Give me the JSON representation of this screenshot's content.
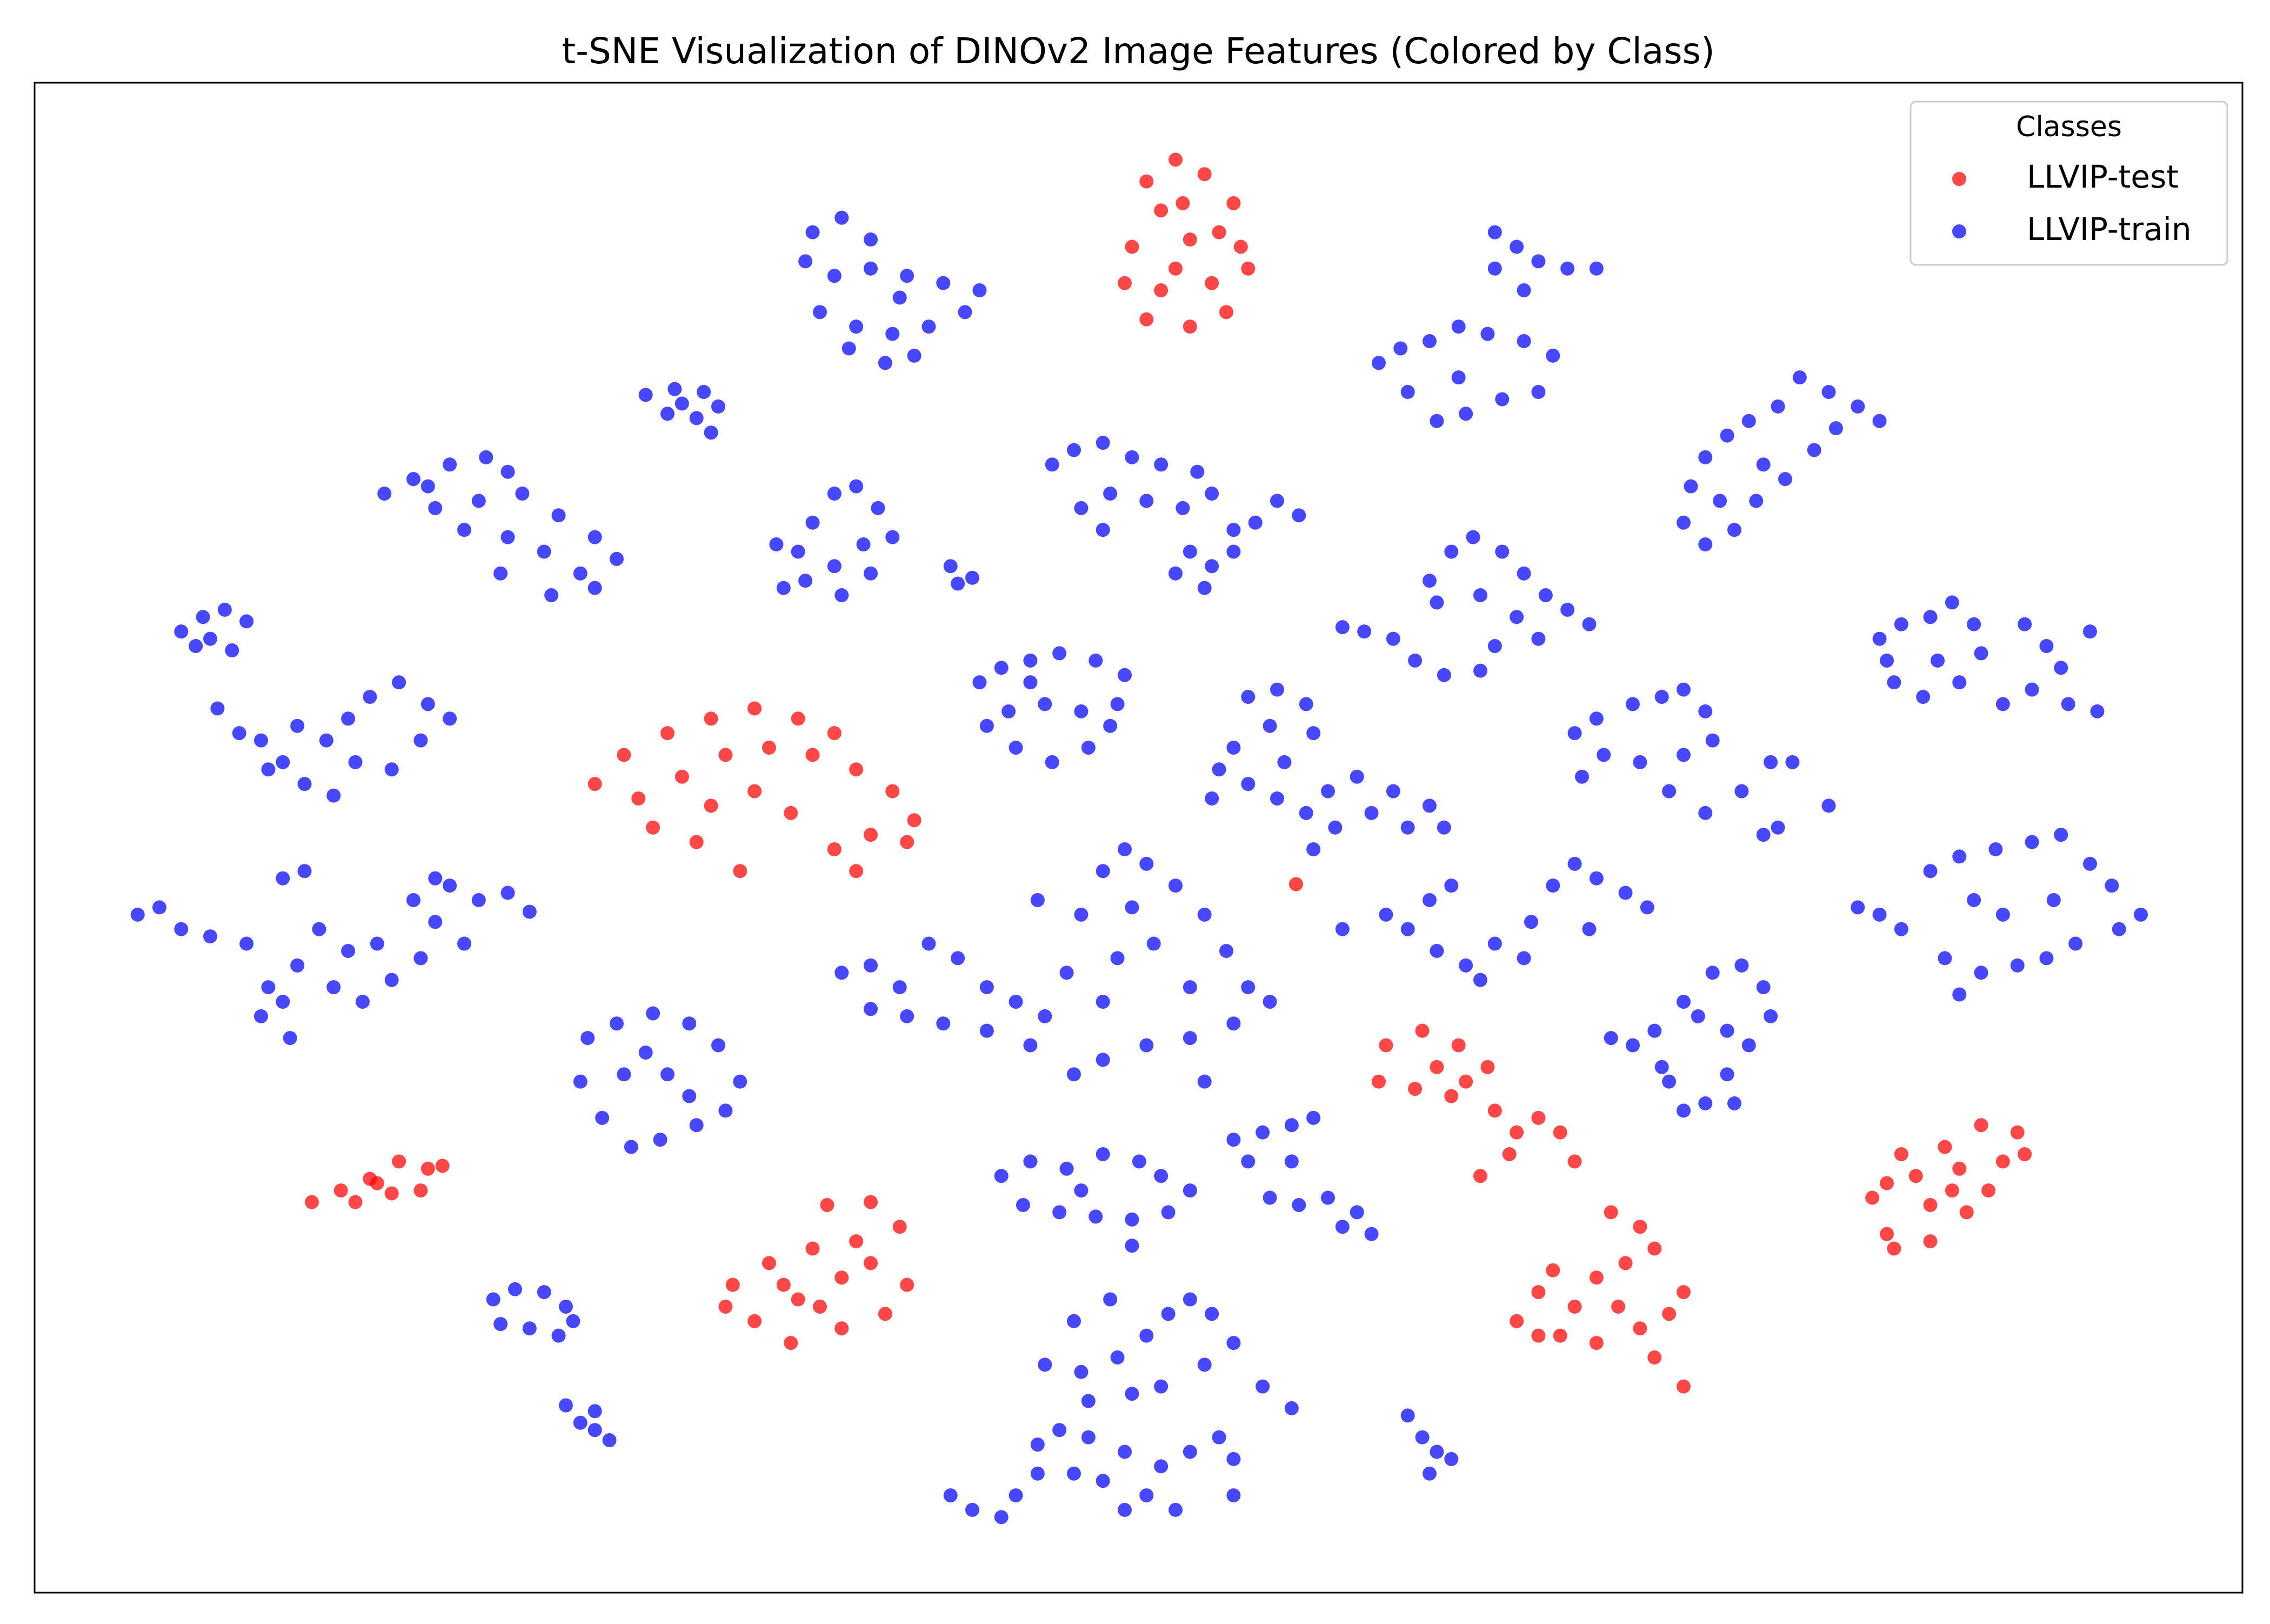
{
  "chart_data": {
    "type": "scatter",
    "title": "t-SNE Visualization of DINOv2 Image Features (Colored by Class)",
    "legend_title": "Classes",
    "legend": "upper right",
    "xlim": [
      24,
      1545
    ],
    "ylim": [
      3,
      1043
    ],
    "series": [
      {
        "name": "LLVIP-test",
        "color": "#ff0000",
        "x": [
          810,
          790,
          830,
          850,
          800,
          780,
          820,
          855,
          775,
          800,
          835,
          860,
          790,
          820,
          845,
          815,
          840,
          810,
          410,
          430,
          460,
          490,
          520,
          550,
          575,
          440,
          470,
          500,
          530,
          560,
          590,
          615,
          630,
          450,
          480,
          510,
          545,
          575,
          600,
          625,
          590,
          520,
          490,
          215,
          235,
          255,
          275,
          295,
          305,
          245,
          270,
          290,
          260,
          570,
          600,
          620,
          590,
          560,
          530,
          505,
          500,
          520,
          545,
          580,
          610,
          625,
          550,
          580,
          600,
          540,
          565,
          955,
          980,
          1005,
          1025,
          950,
          975,
          1000,
          1030,
          1045,
          1060,
          1075,
          1040,
          1020,
          1085,
          990,
          1010,
          1110,
          1130,
          1140,
          1120,
          1100,
          1070,
          1060,
          1045,
          1075,
          1100,
          1130,
          1160,
          1150,
          1085,
          1115,
          1160,
          1140,
          1060,
          1365,
          1390,
          1340,
          1310,
          1300,
          1290,
          1320,
          1350,
          1380,
          1395,
          1330,
          1355,
          1300,
          1330,
          1305,
          1370,
          1345,
          893
        ],
        "values": [
          990,
          975,
          980,
          960,
          955,
          930,
          935,
          930,
          905,
          900,
          905,
          915,
          880,
          875,
          885,
          960,
          940,
          915,
          560,
          580,
          595,
          605,
          612,
          605,
          595,
          550,
          565,
          580,
          585,
          580,
          570,
          555,
          535,
          530,
          520,
          500,
          540,
          515,
          525,
          520,
          500,
          555,
          545,
          272,
          280,
          288,
          300,
          295,
          297,
          272,
          278,
          280,
          285,
          270,
          272,
          255,
          245,
          240,
          230,
          215,
          200,
          190,
          175,
          185,
          195,
          215,
          205,
          220,
          230,
          215,
          200,
          380,
          390,
          380,
          365,
          355,
          350,
          345,
          335,
          320,
          330,
          320,
          305,
          290,
          300,
          365,
          355,
          265,
          255,
          240,
          230,
          220,
          225,
          210,
          190,
          180,
          175,
          185,
          210,
          195,
          200,
          200,
          145,
          165,
          180,
          325,
          320,
          310,
          305,
          285,
          275,
          290,
          295,
          300,
          305,
          270,
          265,
          250,
          245,
          240,
          280,
          280,
          491
        ]
      },
      {
        "name": "LLVIP-train",
        "color": "#0000ff",
        "x": [
          560,
          580,
          600,
          555,
          575,
          600,
          625,
          650,
          675,
          565,
          590,
          615,
          640,
          665,
          585,
          610,
          630,
          620,
          445,
          465,
          485,
          495,
          460,
          480,
          490,
          470,
          265,
          285,
          310,
          335,
          350,
          300,
          330,
          360,
          385,
          410,
          425,
          350,
          375,
          400,
          345,
          380,
          410,
          320,
          295,
          125,
          140,
          155,
          170,
          145,
          160,
          135,
          150,
          165,
          180,
          195,
          210,
          230,
          245,
          225,
          240,
          255,
          275,
          295,
          310,
          290,
          270,
          205,
          185,
          95,
          110,
          125,
          145,
          170,
          195,
          210,
          220,
          240,
          260,
          205,
          230,
          250,
          270,
          290,
          300,
          310,
          330,
          350,
          365,
          320,
          300,
          185,
          180,
          200,
          195,
          285,
          535,
          550,
          560,
          575,
          590,
          605,
          615,
          595,
          575,
          555,
          540,
          580,
          600,
          655,
          670,
          660,
          725,
          740,
          760,
          780,
          800,
          825,
          835,
          815,
          790,
          765,
          745,
          760,
          820,
          835,
          810,
          830,
          850,
          865,
          880,
          895,
          850,
          675,
          690,
          710,
          730,
          755,
          775,
          770,
          745,
          720,
          695,
          680,
          700,
          725,
          750,
          765,
          710,
          860,
          880,
          900,
          905,
          875,
          850,
          840,
          860,
          880,
          900,
          915,
          935,
          960,
          985,
          995,
          970,
          945,
          920,
          835,
          905,
          885,
          925,
          940,
          960,
          975,
          995,
          1020,
          985,
          1000,
          1015,
          1035,
          1050,
          1065,
          1080,
          1095,
          1045,
          1020,
          990,
          1060,
          1030,
          1030,
          1045,
          1060,
          1080,
          1100,
          1030,
          1050,
          950,
          965,
          985,
          1005,
          1025,
          1050,
          1070,
          1060,
          1035,
          1010,
          990,
          970,
          1005,
          1240,
          1260,
          1280,
          1295,
          1225,
          1205,
          1190,
          1175,
          1165,
          1160,
          1175,
          1195,
          1210,
          1230,
          1250,
          1265,
          1215,
          1185,
          1295,
          1310,
          1330,
          1345,
          1360,
          1365,
          1350,
          1325,
          1305,
          1300,
          1395,
          1410,
          1420,
          1440,
          1400,
          1425,
          1445,
          1380,
          1335,
          1085,
          1100,
          1125,
          1145,
          1160,
          1175,
          1180,
          1160,
          1130,
          1105,
          1090,
          1150,
          1175,
          1200,
          1220,
          1235,
          1215,
          1225,
          1260,
          1280,
          1295,
          1310,
          1330,
          1350,
          1375,
          1400,
          1420,
          1440,
          1455,
          1475,
          1460,
          1430,
          1410,
          1390,
          1365,
          1340,
          1350,
          1380,
          1415,
          1360,
          955,
          970,
          985,
          1000,
          990,
          1010,
          1030,
          1055,
          1070,
          1085,
          1100,
          1120,
          1135,
          1095,
          1050,
          1020,
          925,
          580,
          600,
          620,
          640,
          660,
          680,
          700,
          720,
          735,
          745,
          760,
          775,
          790,
          810,
          830,
          845,
          860,
          875,
          850,
          820,
          790,
          760,
          740,
          710,
          680,
          650,
          625,
          600,
          770,
          795,
          760,
          820,
          715,
          780,
          830,
          405,
          425,
          450,
          475,
          495,
          510,
          500,
          480,
          455,
          435,
          415,
          400,
          430,
          460,
          475,
          445,
          690,
          710,
          735,
          760,
          785,
          800,
          820,
          805,
          780,
          755,
          730,
          705,
          780,
          745,
          850,
          870,
          890,
          905,
          860,
          875,
          895,
          915,
          935,
          945,
          925,
          890,
          1110,
          1125,
          1140,
          1160,
          1180,
          1200,
          1215,
          1220,
          1205,
          1190,
          1175,
          1160,
          1150,
          1195,
          1170,
          1190,
          1145,
          340,
          355,
          375,
          390,
          345,
          365,
          385,
          395,
          390,
          400,
          410,
          420,
          410,
          655,
          670,
          690,
          700,
          715,
          730,
          750,
          775,
          800,
          820,
          840,
          850,
          760,
          775,
          790,
          745,
          770,
          790,
          805,
          820,
          835,
          850,
          830,
          800,
          780,
          750,
          720,
          740,
          765,
          870,
          890,
          850,
          810,
          740,
          715,
          970,
          980,
          990,
          985,
          1000
        ],
        "values": [
          940,
          950,
          935,
          920,
          910,
          915,
          910,
          905,
          900,
          885,
          875,
          870,
          875,
          885,
          860,
          850,
          855,
          895,
          828,
          832,
          830,
          820,
          815,
          812,
          802,
          822,
          760,
          770,
          780,
          785,
          775,
          750,
          755,
          760,
          745,
          730,
          715,
          730,
          720,
          705,
          705,
          690,
          695,
          735,
          765,
          665,
          675,
          680,
          672,
          660,
          652,
          655,
          612,
          595,
          590,
          575,
          560,
          552,
          575,
          590,
          605,
          620,
          630,
          615,
          605,
          590,
          570,
          600,
          570,
          470,
          475,
          460,
          455,
          450,
          495,
          500,
          460,
          445,
          450,
          435,
          420,
          410,
          425,
          440,
          465,
          490,
          480,
          485,
          472,
          450,
          495,
          420,
          400,
          385,
          410,
          480,
          725,
          720,
          740,
          760,
          765,
          750,
          730,
          725,
          710,
          700,
          695,
          690,
          705,
          710,
          702,
          698,
          780,
          790,
          795,
          785,
          780,
          775,
          760,
          750,
          755,
          760,
          750,
          735,
          720,
          710,
          705,
          695,
          720,
          740,
          755,
          745,
          735,
          630,
          640,
          645,
          650,
          645,
          635,
          615,
          610,
          615,
          610,
          600,
          585,
          575,
          585,
          600,
          630,
          620,
          625,
          615,
          595,
          600,
          585,
          570,
          560,
          550,
          540,
          555,
          565,
          555,
          545,
          530,
          530,
          540,
          530,
          550,
          515,
          575,
          668,
          665,
          660,
          645,
          635,
          638,
          700,
          720,
          730,
          720,
          705,
          690,
          680,
          670,
          675,
          690,
          685,
          660,
          655,
          940,
          930,
          920,
          915,
          915,
          915,
          900,
          850,
          860,
          865,
          875,
          870,
          865,
          855,
          830,
          825,
          815,
          810,
          830,
          840,
          840,
          830,
          820,
          810,
          820,
          810,
          800,
          785,
          765,
          740,
          725,
          735,
          755,
          770,
          790,
          805,
          780,
          755,
          660,
          670,
          675,
          685,
          670,
          650,
          630,
          620,
          630,
          645,
          670,
          655,
          640,
          665,
          625,
          615,
          610,
          615,
          645,
          595,
          605,
          615,
          620,
          625,
          610,
          590,
          580,
          575,
          580,
          565,
          555,
          540,
          555,
          575,
          575,
          525,
          530,
          545,
          475,
          470,
          460,
          500,
          510,
          515,
          520,
          525,
          505,
          490,
          470,
          460,
          450,
          440,
          435,
          430,
          440,
          415,
          470,
          480,
          480,
          470,
          460,
          480,
          490,
          445,
          435,
          450,
          465,
          490,
          505,
          495,
          485,
          475,
          460,
          440,
          425,
          460,
          430,
          435,
          420,
          450,
          440,
          420,
          410,
          400,
          430,
          470,
          500,
          515,
          505,
          490,
          470,
          445,
          420,
          410,
          395,
          385,
          380,
          370,
          360,
          380,
          390,
          395,
          400,
          405,
          440,
          450,
          410,
          420,
          480,
          475,
          355,
          385,
          395,
          402,
          395,
          380,
          355,
          335,
          325,
          315,
          310,
          330,
          355,
          360,
          360,
          345,
          375,
          290,
          300,
          295,
          305,
          300,
          290,
          280,
          265,
          260,
          262,
          265,
          270,
          242,
          280,
          315,
          320,
          325,
          330,
          300,
          275,
          270,
          275,
          265,
          250,
          255,
          300,
          385,
          380,
          390,
          410,
          430,
          435,
          420,
          400,
          380,
          360,
          340,
          335,
          355,
          340,
          400,
          390,
          365,
          205,
          212,
          210,
          200,
          188,
          185,
          180,
          190,
          132,
          120,
          115,
          108,
          128,
          70,
          60,
          55,
          70,
          105,
          115,
          110,
          100,
          90,
          100,
          110,
          95,
          80,
          60,
          70,
          155,
          165,
          180,
          195,
          205,
          195,
          175,
          160,
          145,
          140,
          135,
          160,
          190,
          205,
          145,
          130,
          70,
          60,
          85,
          85,
          125,
          110,
          100,
          85,
          95
        ]
      }
    ]
  }
}
